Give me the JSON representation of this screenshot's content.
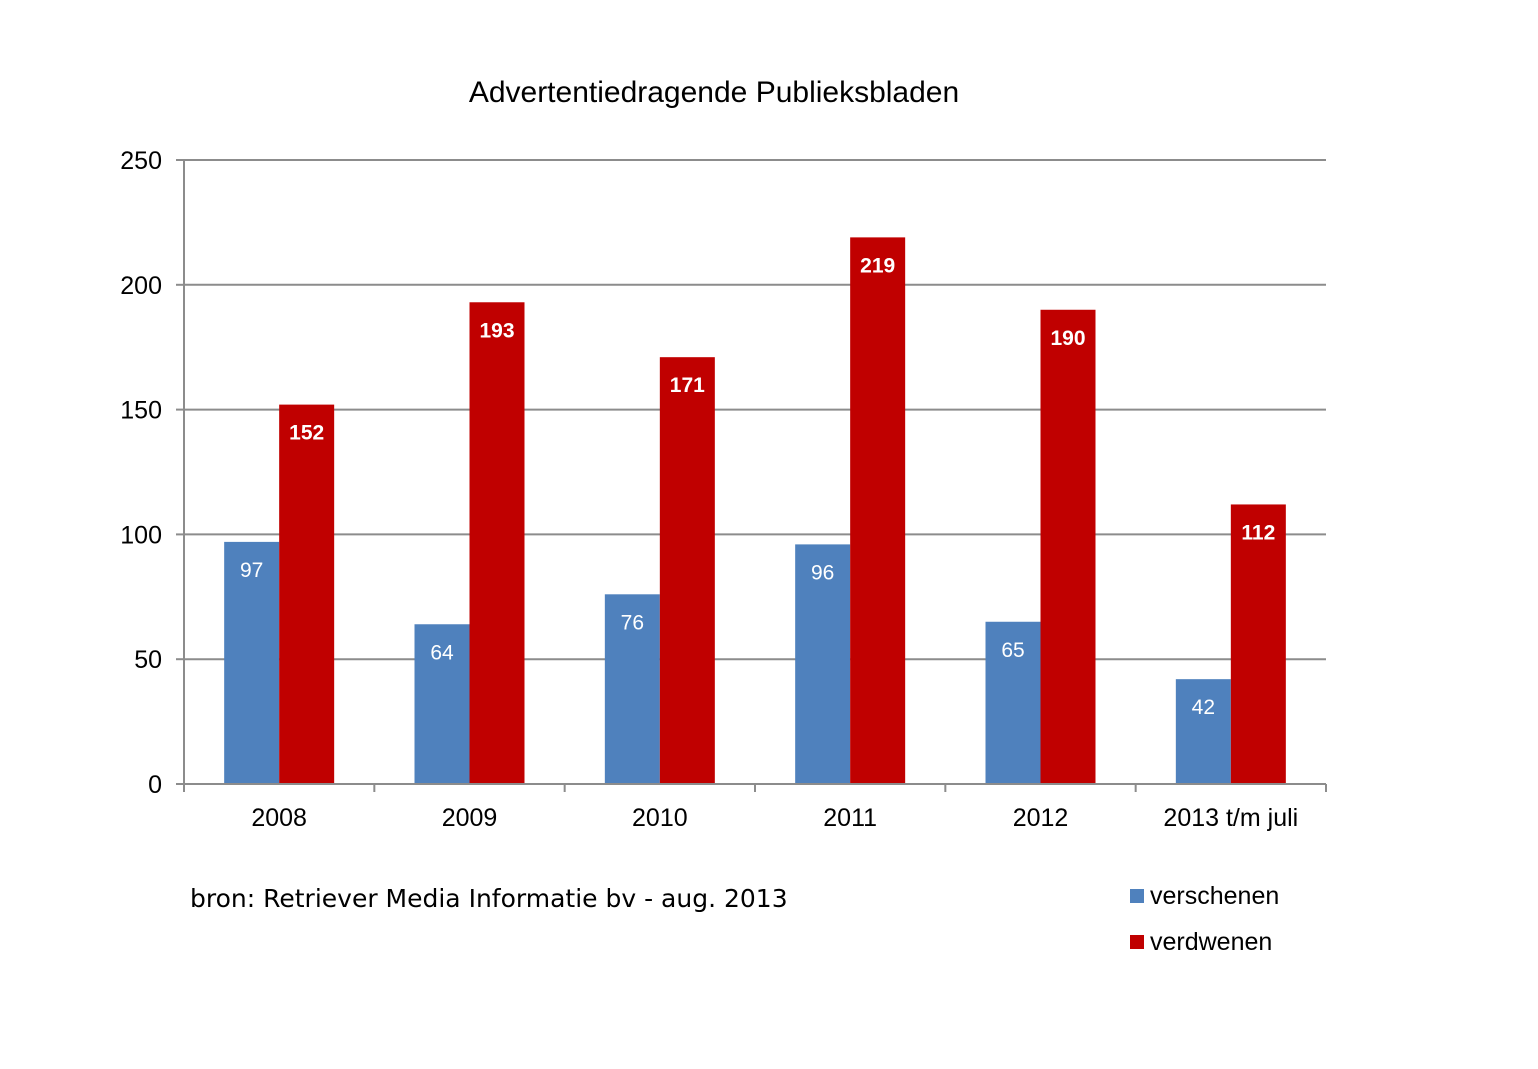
{
  "chart_data": {
    "type": "bar",
    "title": "Advertentiedragende Publieksbladen",
    "categories": [
      "2008",
      "2009",
      "2010",
      "2011",
      "2012",
      "2013 t/m juli"
    ],
    "series": [
      {
        "name": "verschenen",
        "values": [
          97,
          64,
          76,
          96,
          65,
          42
        ],
        "color": "#4f81bd"
      },
      {
        "name": "verdwenen",
        "values": [
          152,
          193,
          171,
          219,
          190,
          112
        ],
        "color": "#c00000"
      }
    ],
    "ylim": [
      0,
      250
    ],
    "yticks": [
      "0",
      "50",
      "100",
      "150",
      "200",
      "250"
    ],
    "grid": true,
    "legend": "bottom-right",
    "xlabel": "",
    "ylabel": ""
  },
  "source_note": "bron: Retriever Media Informatie  bv - aug. 2013"
}
